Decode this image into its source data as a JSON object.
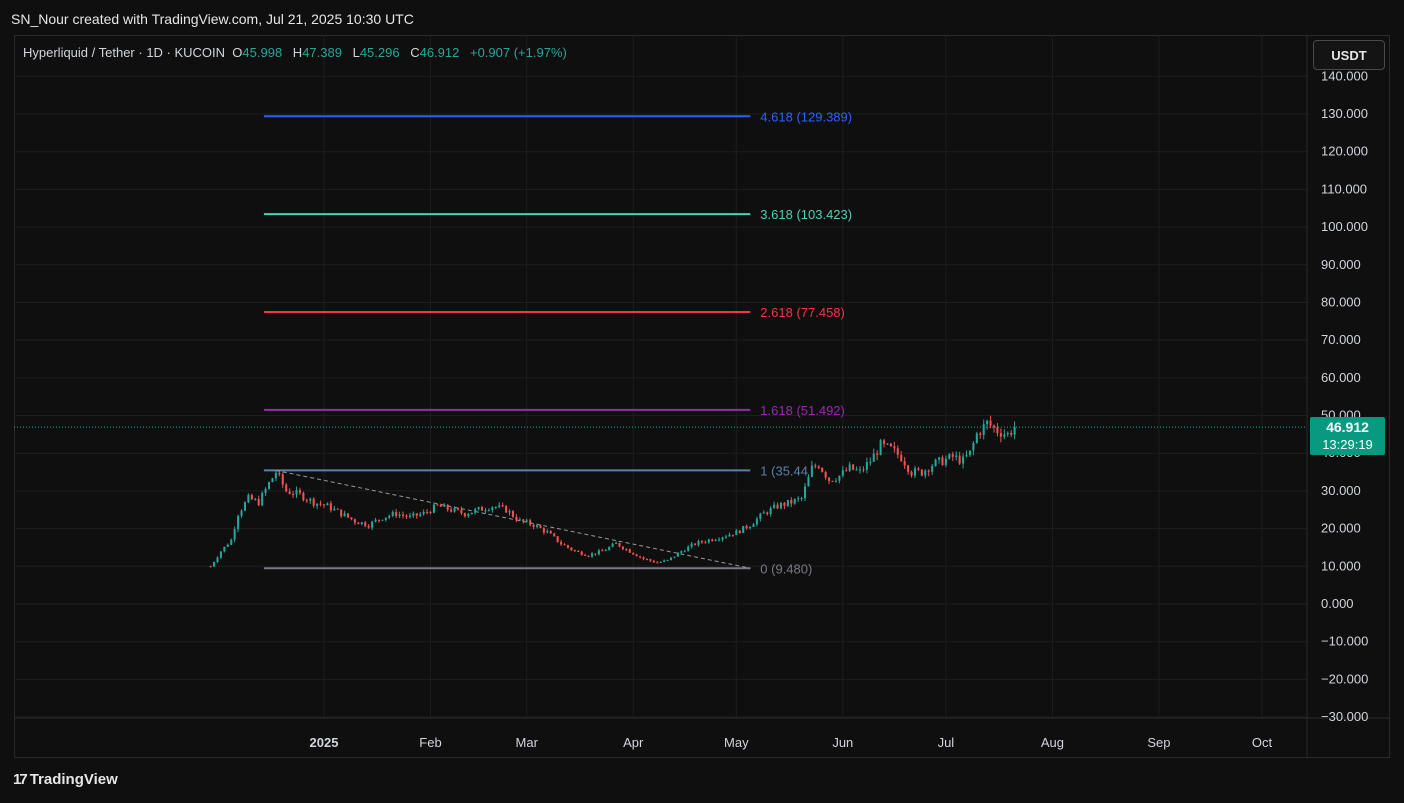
{
  "header": {
    "attribution": "SN_Nour created with TradingView.com, Jul 21, 2025 10:30 UTC"
  },
  "legend": {
    "symbol": "Hyperliquid / Tether · 1D · KUCOIN",
    "open_label": "O",
    "open": "45.998",
    "high_label": "H",
    "high": "47.389",
    "low_label": "L",
    "low": "45.296",
    "close_label": "C",
    "close": "46.912",
    "change": "+0.907 (+1.97%)"
  },
  "currency_button": "USDT",
  "price_tag": {
    "price": "46.912",
    "countdown": "13:29:19"
  },
  "footer": {
    "brand": "TradingView",
    "logo_mark": "17"
  },
  "colors": {
    "up": "#26a69a",
    "down": "#ef5350",
    "background": "#0f0f0f",
    "grid": "#1e1e1e"
  },
  "chart_data": {
    "type": "candlestick",
    "title": "Hyperliquid / Tether · 1D · KUCOIN",
    "ylim": [
      -30,
      140
    ],
    "y_ticks": [
      {
        "value": -30,
        "label": "−30.000"
      },
      {
        "value": -20,
        "label": "−20.000"
      },
      {
        "value": -10,
        "label": "−10.000"
      },
      {
        "value": 0,
        "label": "0.000"
      },
      {
        "value": 10,
        "label": "10.000"
      },
      {
        "value": 20,
        "label": "20.000"
      },
      {
        "value": 30,
        "label": "30.000"
      },
      {
        "value": 40,
        "label": "40.000"
      },
      {
        "value": 50,
        "label": "50.000"
      },
      {
        "value": 60,
        "label": "60.000"
      },
      {
        "value": 70,
        "label": "70.000"
      },
      {
        "value": 80,
        "label": "80.000"
      },
      {
        "value": 90,
        "label": "90.000"
      },
      {
        "value": 100,
        "label": "100.000"
      },
      {
        "value": 110,
        "label": "110.000"
      },
      {
        "value": 120,
        "label": "120.000"
      },
      {
        "value": 130,
        "label": "130.000"
      },
      {
        "value": 140,
        "label": "140.000"
      }
    ],
    "x_ticks": [
      {
        "date": "2025-01-01",
        "label": "2025",
        "bold": true
      },
      {
        "date": "2025-02-01",
        "label": "Feb"
      },
      {
        "date": "2025-03-01",
        "label": "Mar"
      },
      {
        "date": "2025-04-01",
        "label": "Apr"
      },
      {
        "date": "2025-05-01",
        "label": "May"
      },
      {
        "date": "2025-06-01",
        "label": "Jun"
      },
      {
        "date": "2025-07-01",
        "label": "Jul"
      },
      {
        "date": "2025-08-01",
        "label": "Aug"
      },
      {
        "date": "2025-09-01",
        "label": "Sep"
      },
      {
        "date": "2025-10-01",
        "label": "Oct"
      }
    ],
    "price_path": [
      [
        "2024-11-29",
        10
      ],
      [
        "2024-12-02",
        14
      ],
      [
        "2024-12-05",
        17
      ],
      [
        "2024-12-07",
        24
      ],
      [
        "2024-12-10",
        28
      ],
      [
        "2024-12-13",
        27
      ],
      [
        "2024-12-16",
        32
      ],
      [
        "2024-12-18",
        35
      ],
      [
        "2024-12-21",
        30
      ],
      [
        "2024-12-25",
        29
      ],
      [
        "2024-12-29",
        27
      ],
      [
        "2025-01-02",
        26
      ],
      [
        "2025-01-06",
        24
      ],
      [
        "2025-01-10",
        22
      ],
      [
        "2025-01-14",
        21
      ],
      [
        "2025-01-18",
        23
      ],
      [
        "2025-01-22",
        24
      ],
      [
        "2025-01-26",
        23
      ],
      [
        "2025-01-30",
        24
      ],
      [
        "2025-02-03",
        26
      ],
      [
        "2025-02-07",
        25
      ],
      [
        "2025-02-11",
        24
      ],
      [
        "2025-02-15",
        25
      ],
      [
        "2025-02-19",
        26
      ],
      [
        "2025-02-23",
        25
      ],
      [
        "2025-02-27",
        22
      ],
      [
        "2025-03-03",
        21
      ],
      [
        "2025-03-07",
        19
      ],
      [
        "2025-03-11",
        16
      ],
      [
        "2025-03-15",
        14
      ],
      [
        "2025-03-19",
        13
      ],
      [
        "2025-03-23",
        14
      ],
      [
        "2025-03-27",
        16
      ],
      [
        "2025-03-31",
        14
      ],
      [
        "2025-04-04",
        12
      ],
      [
        "2025-04-08",
        11
      ],
      [
        "2025-04-11",
        11.5
      ],
      [
        "2025-04-15",
        14
      ],
      [
        "2025-04-19",
        16
      ],
      [
        "2025-04-23",
        17
      ],
      [
        "2025-04-27",
        18
      ],
      [
        "2025-05-01",
        19
      ],
      [
        "2025-05-05",
        21
      ],
      [
        "2025-05-09",
        24
      ],
      [
        "2025-05-13",
        26
      ],
      [
        "2025-05-17",
        27
      ],
      [
        "2025-05-20",
        28
      ],
      [
        "2025-05-23",
        36
      ],
      [
        "2025-05-25",
        37
      ],
      [
        "2025-05-28",
        33
      ],
      [
        "2025-05-31",
        34
      ],
      [
        "2025-06-03",
        36
      ],
      [
        "2025-06-06",
        35
      ],
      [
        "2025-06-09",
        38
      ],
      [
        "2025-06-12",
        42
      ],
      [
        "2025-06-15",
        41
      ],
      [
        "2025-06-18",
        39
      ],
      [
        "2025-06-21",
        35
      ],
      [
        "2025-06-24",
        35
      ],
      [
        "2025-06-27",
        37
      ],
      [
        "2025-06-30",
        38
      ],
      [
        "2025-07-03",
        39
      ],
      [
        "2025-07-06",
        38
      ],
      [
        "2025-07-08",
        40
      ],
      [
        "2025-07-10",
        45
      ],
      [
        "2025-07-13",
        48
      ],
      [
        "2025-07-16",
        46
      ],
      [
        "2025-07-19",
        45
      ],
      [
        "2025-07-21",
        46.912
      ]
    ],
    "fib_levels": [
      {
        "ratio": "4.618",
        "value": 129.389,
        "label": "4.618 (129.389)",
        "color": "#2962ff"
      },
      {
        "ratio": "3.618",
        "value": 103.423,
        "label": "3.618 (103.423)",
        "color": "#4dd0b4"
      },
      {
        "ratio": "2.618",
        "value": 77.458,
        "label": "2.618 (77.458)",
        "color": "#f23645"
      },
      {
        "ratio": "1.618",
        "value": 51.492,
        "label": "1.618 (51.492)",
        "color": "#9c27b0"
      },
      {
        "ratio": "1",
        "value": 35.44,
        "label": "1 (35.44",
        "color": "#5b7fa8"
      },
      {
        "ratio": "0",
        "value": 9.48,
        "label": "0 (9.480)",
        "color": "#787b86"
      }
    ],
    "fib_range": {
      "start": "2024-12-18",
      "end": "2025-05-01"
    },
    "trend_line": {
      "from": [
        "2024-12-18",
        35.44
      ],
      "to": [
        "2025-05-01",
        9.48
      ]
    },
    "last_price": 46.912
  }
}
